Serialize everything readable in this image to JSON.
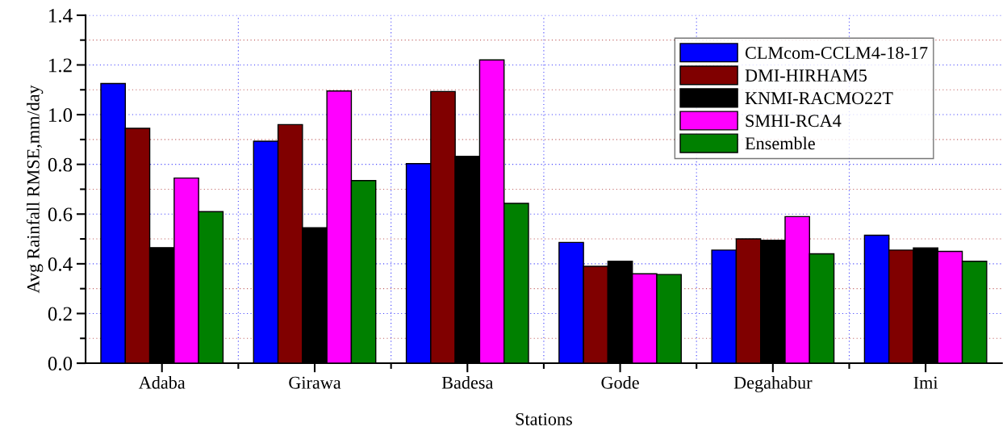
{
  "chart_data": {
    "type": "bar",
    "xlabel": "Stations",
    "ylabel": "Avg Rainfall RMSE,mm/day",
    "categories": [
      "Adaba",
      "Girawa",
      "Badesa",
      "Gode",
      "Degahabur",
      "Imi"
    ],
    "series": [
      {
        "name": "CLMcom-CCLM4-18-17",
        "color": "#0000ff",
        "values": [
          1.125,
          0.893,
          0.803,
          0.486,
          0.455,
          0.515
        ]
      },
      {
        "name": "DMI-HIRHAM5",
        "color": "#800000",
        "values": [
          0.945,
          0.96,
          1.093,
          0.39,
          0.5,
          0.455
        ]
      },
      {
        "name": "KNMI-RACMO22T",
        "color": "#000000",
        "values": [
          0.465,
          0.545,
          0.832,
          0.41,
          0.495,
          0.464
        ]
      },
      {
        "name": "SMHI-RCA4",
        "color": "#ff00ff",
        "values": [
          0.745,
          1.095,
          1.22,
          0.36,
          0.59,
          0.45
        ]
      },
      {
        "name": "Ensemble",
        "color": "#008000",
        "values": [
          0.61,
          0.735,
          0.643,
          0.357,
          0.44,
          0.41
        ]
      }
    ],
    "ylim": [
      0,
      1.4
    ],
    "yticks": [
      {
        "value": 0,
        "label": "0.0"
      },
      {
        "value": 0.1,
        "label": null
      },
      {
        "value": 0.2,
        "label": "0.2"
      },
      {
        "value": 0.3,
        "label": null
      },
      {
        "value": 0.4,
        "label": "0.4"
      },
      {
        "value": 0.5,
        "label": null
      },
      {
        "value": 0.6,
        "label": "0.6"
      },
      {
        "value": 0.7,
        "label": null
      },
      {
        "value": 0.8,
        "label": "0.8"
      },
      {
        "value": 0.9,
        "label": null
      },
      {
        "value": 1.0,
        "label": "1.0"
      },
      {
        "value": 1.1,
        "label": null
      },
      {
        "value": 1.2,
        "label": "1.2"
      },
      {
        "value": 1.3,
        "label": null
      },
      {
        "value": 1.4,
        "label": "1.4"
      }
    ],
    "grid": true,
    "legend": "top right"
  }
}
